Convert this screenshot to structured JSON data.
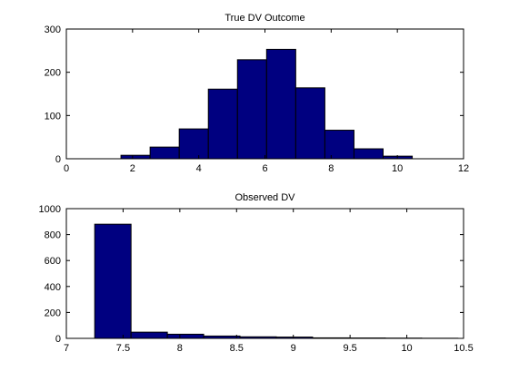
{
  "chart_data": [
    {
      "type": "bar",
      "title": "True DV Outcome",
      "xlabel": "",
      "ylabel": "",
      "xlim": [
        0,
        12
      ],
      "ylim": [
        0,
        300
      ],
      "xticks": [
        0,
        2,
        4,
        6,
        8,
        10,
        12
      ],
      "yticks": [
        0,
        100,
        200,
        300
      ],
      "grid": false,
      "bar_color": "#000080",
      "bins": [
        {
          "x0": 1.65,
          "x1": 2.53,
          "value": 8
        },
        {
          "x0": 2.53,
          "x1": 3.41,
          "value": 27
        },
        {
          "x0": 3.41,
          "x1": 4.29,
          "value": 69
        },
        {
          "x0": 4.29,
          "x1": 5.17,
          "value": 161
        },
        {
          "x0": 5.17,
          "x1": 6.05,
          "value": 229
        },
        {
          "x0": 6.05,
          "x1": 6.93,
          "value": 253
        },
        {
          "x0": 6.93,
          "x1": 7.81,
          "value": 164
        },
        {
          "x0": 7.81,
          "x1": 8.69,
          "value": 66
        },
        {
          "x0": 8.69,
          "x1": 9.57,
          "value": 23
        },
        {
          "x0": 9.57,
          "x1": 10.45,
          "value": 6
        }
      ]
    },
    {
      "type": "bar",
      "title": "Observed DV",
      "xlabel": "",
      "ylabel": "",
      "xlim": [
        7,
        10.5
      ],
      "ylim": [
        0,
        1000
      ],
      "xticks": [
        7,
        7.5,
        8,
        8.5,
        9,
        9.5,
        10,
        10.5
      ],
      "yticks": [
        0,
        200,
        400,
        600,
        800,
        1000
      ],
      "grid": false,
      "bar_color": "#000080",
      "bins": [
        {
          "x0": 7.25,
          "x1": 7.57,
          "value": 880
        },
        {
          "x0": 7.57,
          "x1": 7.89,
          "value": 48
        },
        {
          "x0": 7.89,
          "x1": 8.21,
          "value": 32
        },
        {
          "x0": 8.21,
          "x1": 8.53,
          "value": 18
        },
        {
          "x0": 8.53,
          "x1": 8.85,
          "value": 12
        },
        {
          "x0": 8.85,
          "x1": 9.17,
          "value": 10
        },
        {
          "x0": 9.17,
          "x1": 9.49,
          "value": 4
        },
        {
          "x0": 9.49,
          "x1": 9.81,
          "value": 3
        },
        {
          "x0": 9.81,
          "x1": 10.13,
          "value": 2
        },
        {
          "x0": 10.13,
          "x1": 10.45,
          "value": 1
        }
      ]
    }
  ]
}
